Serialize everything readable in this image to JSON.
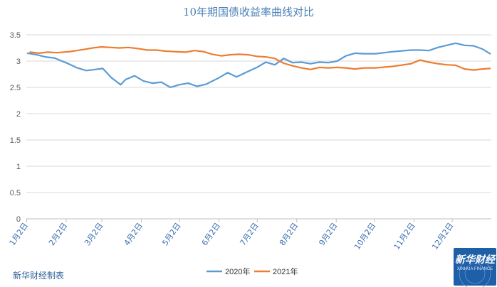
{
  "chart_data": {
    "type": "line",
    "title": "10年期国债收益率曲线对比",
    "ylim": [
      0,
      3.5
    ],
    "yticks": [
      "0",
      "0.5",
      "1",
      "1.5",
      "2",
      "2.5",
      "3",
      "3.5"
    ],
    "xticks": [
      "1月2日",
      "2月2日",
      "3月2日",
      "4月2日",
      "5月2日",
      "6月2日",
      "7月2日",
      "8月2日",
      "9月2日",
      "10月2日",
      "11月2日",
      "12月2日"
    ],
    "grid": "horizontal",
    "legend_position": "bottom",
    "series": [
      {
        "name": "2020年",
        "color": "#5b9bd5",
        "points": [
          [
            "01-02",
            3.15
          ],
          [
            "01-09",
            3.12
          ],
          [
            "01-16",
            3.08
          ],
          [
            "01-23",
            3.06
          ],
          [
            "02-03",
            2.95
          ],
          [
            "02-10",
            2.87
          ],
          [
            "02-17",
            2.82
          ],
          [
            "02-24",
            2.84
          ],
          [
            "03-02",
            2.86
          ],
          [
            "03-09",
            2.68
          ],
          [
            "03-16",
            2.55
          ],
          [
            "03-20",
            2.65
          ],
          [
            "03-27",
            2.72
          ],
          [
            "04-03",
            2.62
          ],
          [
            "04-10",
            2.58
          ],
          [
            "04-17",
            2.6
          ],
          [
            "04-24",
            2.5
          ],
          [
            "05-01",
            2.55
          ],
          [
            "05-08",
            2.58
          ],
          [
            "05-15",
            2.52
          ],
          [
            "05-22",
            2.56
          ],
          [
            "06-01",
            2.68
          ],
          [
            "06-08",
            2.78
          ],
          [
            "06-15",
            2.7
          ],
          [
            "06-22",
            2.78
          ],
          [
            "07-01",
            2.88
          ],
          [
            "07-08",
            2.98
          ],
          [
            "07-15",
            2.93
          ],
          [
            "07-22",
            3.05
          ],
          [
            "07-29",
            2.97
          ],
          [
            "08-05",
            2.98
          ],
          [
            "08-12",
            2.95
          ],
          [
            "08-19",
            2.98
          ],
          [
            "08-26",
            2.97
          ],
          [
            "09-02",
            3.0
          ],
          [
            "09-09",
            3.1
          ],
          [
            "09-16",
            3.15
          ],
          [
            "09-23",
            3.14
          ],
          [
            "10-02",
            3.14
          ],
          [
            "10-16",
            3.18
          ],
          [
            "10-30",
            3.21
          ],
          [
            "11-06",
            3.21
          ],
          [
            "11-13",
            3.2
          ],
          [
            "11-20",
            3.26
          ],
          [
            "11-27",
            3.3
          ],
          [
            "12-04",
            3.34
          ],
          [
            "12-11",
            3.3
          ],
          [
            "12-18",
            3.29
          ],
          [
            "12-25",
            3.23
          ],
          [
            "12-31",
            3.14
          ]
        ]
      },
      {
        "name": "2021年",
        "color": "#ed7d31",
        "points": [
          [
            "01-04",
            3.17
          ],
          [
            "01-11",
            3.15
          ],
          [
            "01-18",
            3.17
          ],
          [
            "01-25",
            3.16
          ],
          [
            "02-04",
            3.18
          ],
          [
            "02-15",
            3.22
          ],
          [
            "02-22",
            3.25
          ],
          [
            "03-01",
            3.27
          ],
          [
            "03-08",
            3.26
          ],
          [
            "03-15",
            3.25
          ],
          [
            "03-22",
            3.26
          ],
          [
            "03-29",
            3.24
          ],
          [
            "04-06",
            3.21
          ],
          [
            "04-13",
            3.21
          ],
          [
            "04-20",
            3.19
          ],
          [
            "04-27",
            3.18
          ],
          [
            "05-06",
            3.17
          ],
          [
            "05-13",
            3.2
          ],
          [
            "05-20",
            3.18
          ],
          [
            "05-27",
            3.13
          ],
          [
            "06-03",
            3.1
          ],
          [
            "06-10",
            3.12
          ],
          [
            "06-17",
            3.13
          ],
          [
            "06-24",
            3.12
          ],
          [
            "07-01",
            3.09
          ],
          [
            "07-08",
            3.08
          ],
          [
            "07-15",
            3.05
          ],
          [
            "07-22",
            2.96
          ],
          [
            "07-29",
            2.91
          ],
          [
            "08-05",
            2.87
          ],
          [
            "08-12",
            2.84
          ],
          [
            "08-19",
            2.88
          ],
          [
            "08-26",
            2.87
          ],
          [
            "09-02",
            2.88
          ],
          [
            "09-09",
            2.87
          ],
          [
            "09-16",
            2.85
          ],
          [
            "09-23",
            2.87
          ],
          [
            "10-02",
            2.87
          ],
          [
            "10-16",
            2.9
          ],
          [
            "10-30",
            2.95
          ],
          [
            "11-06",
            3.02
          ],
          [
            "11-13",
            2.98
          ],
          [
            "11-20",
            2.95
          ],
          [
            "11-27",
            2.93
          ],
          [
            "12-04",
            2.92
          ],
          [
            "12-11",
            2.85
          ],
          [
            "12-18",
            2.83
          ],
          [
            "12-25",
            2.85
          ],
          [
            "12-31",
            2.86
          ]
        ]
      }
    ]
  },
  "footer": {
    "source": "新华财经制表",
    "logo_text": "新华财经",
    "logo_sub": "XINHUA FINANCE"
  }
}
